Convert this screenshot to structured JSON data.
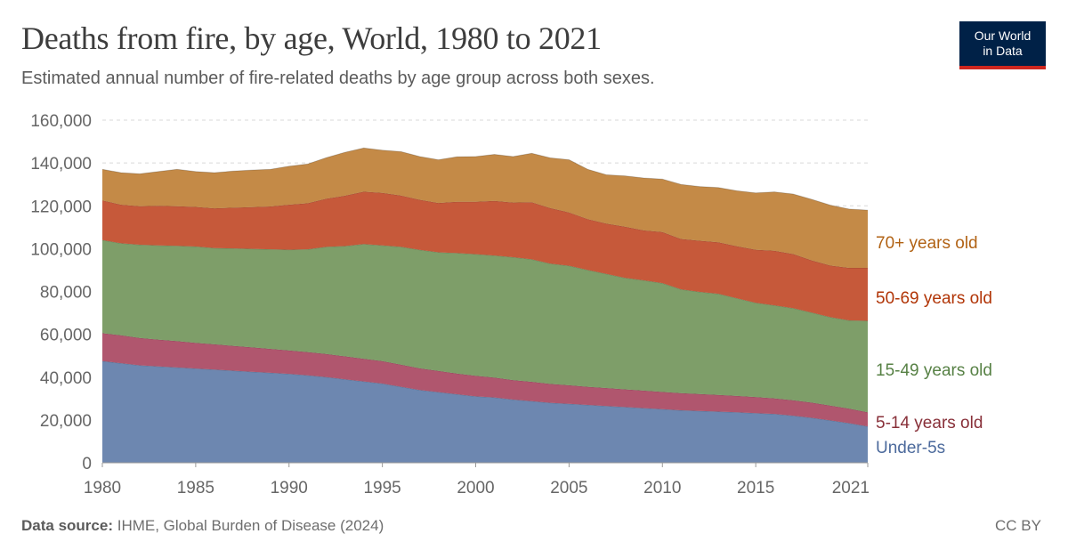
{
  "header": {
    "title": "Deaths from fire, by age, World, 1980 to 2021",
    "subtitle": "Estimated annual number of fire-related deaths by age group across both sexes."
  },
  "logo": {
    "line1": "Our World",
    "line2": "in Data"
  },
  "footer": {
    "source_label": "Data source:",
    "source_text": "IHME, Global Burden of Disease (2024)",
    "license": "CC BY"
  },
  "chart_data": {
    "type": "area",
    "stacked": true,
    "title": "Deaths from fire, by age, World, 1980 to 2021",
    "subtitle": "Estimated annual number of fire-related deaths by age group across both sexes.",
    "xlabel": "",
    "ylabel": "",
    "xlim": [
      1980,
      2021
    ],
    "ylim": [
      0,
      160000
    ],
    "grid": true,
    "legend": "right-inline",
    "x": [
      1980,
      1981,
      1982,
      1983,
      1984,
      1985,
      1986,
      1987,
      1988,
      1989,
      1990,
      1991,
      1992,
      1993,
      1994,
      1995,
      1996,
      1997,
      1998,
      1999,
      2000,
      2001,
      2002,
      2003,
      2004,
      2005,
      2006,
      2007,
      2008,
      2009,
      2010,
      2011,
      2012,
      2013,
      2014,
      2015,
      2016,
      2017,
      2018,
      2019,
      2020,
      2021
    ],
    "x_ticks": [
      1980,
      1985,
      1990,
      1995,
      2000,
      2005,
      2010,
      2015,
      2021
    ],
    "y_ticks": [
      0,
      20000,
      40000,
      60000,
      80000,
      100000,
      120000,
      140000,
      160000
    ],
    "y_tick_labels": [
      "0",
      "20,000",
      "40,000",
      "60,000",
      "80,000",
      "100,000",
      "120,000",
      "140,000",
      "160,000"
    ],
    "series": [
      {
        "name": "Under-5s",
        "color": "#6d87b0",
        "label_color": "#4c6a9c",
        "values": [
          47500,
          46500,
          45500,
          45000,
          44500,
          44000,
          43500,
          43000,
          42500,
          42000,
          41500,
          40800,
          40000,
          39000,
          38000,
          37000,
          35500,
          34000,
          33000,
          32000,
          31000,
          30500,
          29500,
          28800,
          28000,
          27500,
          27000,
          26500,
          26000,
          25500,
          25000,
          24500,
          24200,
          23900,
          23600,
          23200,
          22800,
          22000,
          21000,
          19800,
          18500,
          17000
        ]
      },
      {
        "name": "5-14 years old",
        "color": "#b0566e",
        "label_color": "#883039",
        "values": [
          13000,
          13000,
          12800,
          12500,
          12300,
          12000,
          11800,
          11600,
          11400,
          11200,
          11000,
          10900,
          10800,
          10700,
          10600,
          10500,
          10300,
          10100,
          9900,
          9700,
          9600,
          9300,
          9100,
          9000,
          8800,
          8700,
          8500,
          8400,
          8300,
          8200,
          8100,
          8000,
          7900,
          7800,
          7600,
          7500,
          7300,
          7200,
          7100,
          6900,
          6800,
          6600
        ]
      },
      {
        "name": "15-49 years old",
        "color": "#7e9e69",
        "label_color": "#578145",
        "values": [
          43500,
          43000,
          43500,
          44000,
          44500,
          45000,
          45000,
          45500,
          46000,
          46500,
          47000,
          48000,
          50000,
          51500,
          53500,
          54000,
          55000,
          55300,
          55400,
          56200,
          56800,
          57000,
          57400,
          57200,
          56200,
          55800,
          54500,
          53300,
          52000,
          51500,
          50800,
          48500,
          47700,
          47200,
          45600,
          44000,
          43400,
          43000,
          42000,
          41300,
          41200,
          42700
        ]
      },
      {
        "name": "50-69 years old",
        "color": "#c6593a",
        "label_color": "#b13507",
        "values": [
          18500,
          18000,
          18000,
          18500,
          18500,
          18500,
          18500,
          19000,
          19500,
          20000,
          21000,
          21500,
          22500,
          23500,
          24500,
          24500,
          24000,
          23400,
          23000,
          24000,
          24500,
          25500,
          25500,
          26700,
          25900,
          24900,
          23800,
          23500,
          23900,
          23300,
          23800,
          23500,
          23900,
          24100,
          24300,
          24800,
          25500,
          25300,
          24400,
          24100,
          24500,
          24700
        ]
      },
      {
        "name": "70+ years old",
        "color": "#c48a47",
        "label_color": "#b16214",
        "values": [
          14500,
          15000,
          15200,
          16000,
          17200,
          16500,
          16700,
          17100,
          17300,
          17300,
          18000,
          18300,
          19200,
          20300,
          20400,
          20000,
          20500,
          20200,
          20200,
          21000,
          21100,
          21700,
          21500,
          22800,
          23500,
          24600,
          23200,
          22800,
          23800,
          24500,
          24800,
          25500,
          25300,
          25500,
          25900,
          26500,
          27500,
          28000,
          28500,
          28200,
          27500,
          27000
        ]
      }
    ],
    "series_label_values": [
      256000,
      344500,
      411500,
      470000,
      0
    ]
  }
}
